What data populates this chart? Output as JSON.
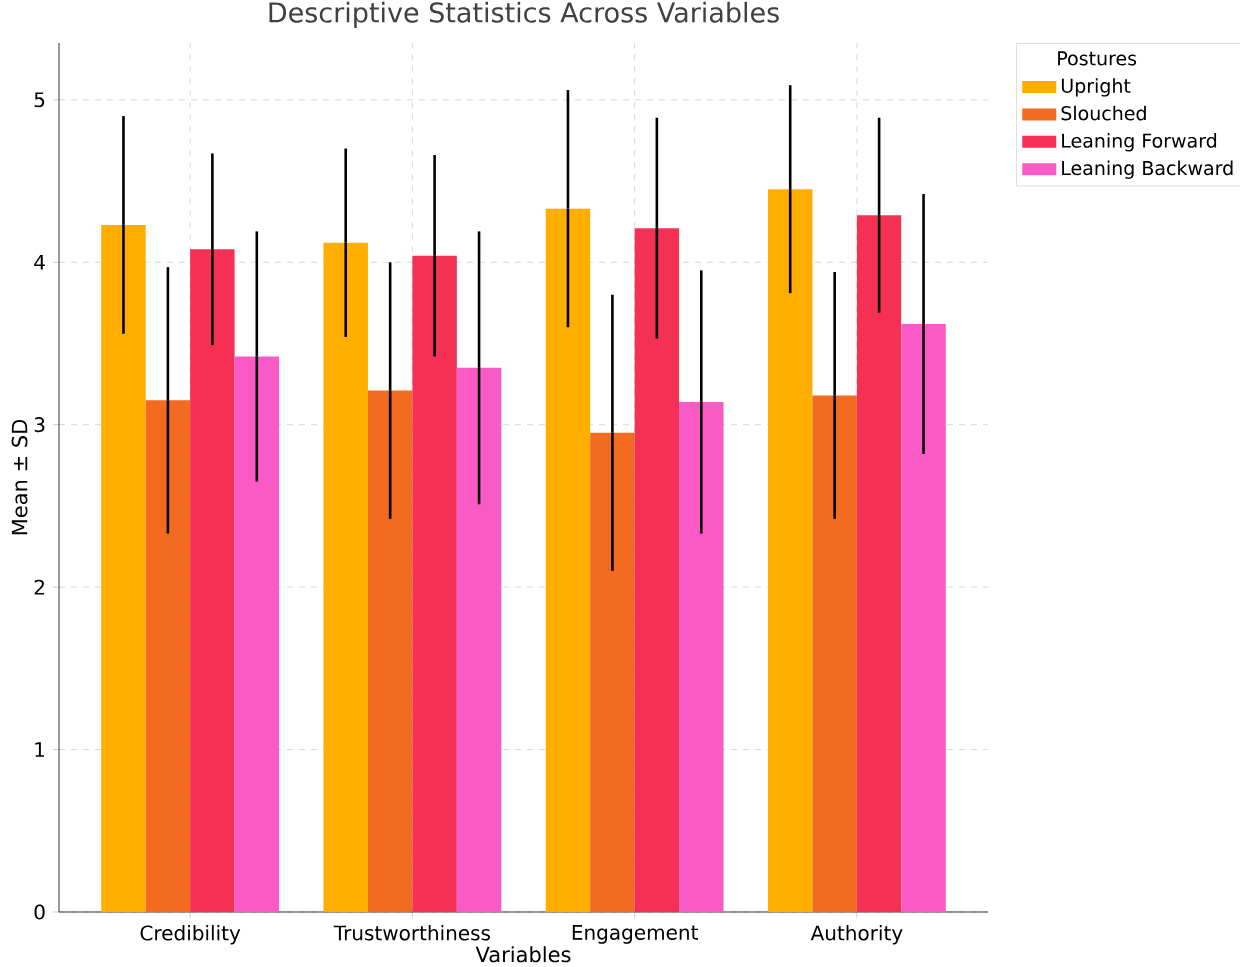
{
  "chart_data": {
    "type": "bar",
    "title": "Descriptive Statistics Across Variables",
    "xlabel": "Variables",
    "ylabel": "Mean ± SD",
    "legend_title": "Postures",
    "categories": [
      "Credibility",
      "Trustworthiness",
      "Engagement",
      "Authority"
    ],
    "series": [
      {
        "name": "Upright",
        "color": "#ffae00",
        "values": [
          4.23,
          4.12,
          4.33,
          4.45
        ],
        "errors": [
          0.67,
          0.58,
          0.73,
          0.64
        ]
      },
      {
        "name": "Slouched",
        "color": "#f26b21",
        "values": [
          3.15,
          3.21,
          2.95,
          3.18
        ],
        "errors": [
          0.82,
          0.79,
          0.85,
          0.76
        ]
      },
      {
        "name": "Leaning Forward",
        "color": "#f43155",
        "values": [
          4.08,
          4.04,
          4.21,
          4.29
        ],
        "errors": [
          0.59,
          0.62,
          0.68,
          0.6
        ]
      },
      {
        "name": "Leaning Backward",
        "color": "#f95ac6",
        "values": [
          3.42,
          3.35,
          3.14,
          3.62
        ],
        "errors": [
          0.77,
          0.84,
          0.81,
          0.8
        ]
      }
    ],
    "ylim": [
      0,
      5.35
    ],
    "yticks": [
      0,
      1,
      2,
      3,
      4,
      5
    ],
    "grid": true,
    "legend": "top right"
  }
}
